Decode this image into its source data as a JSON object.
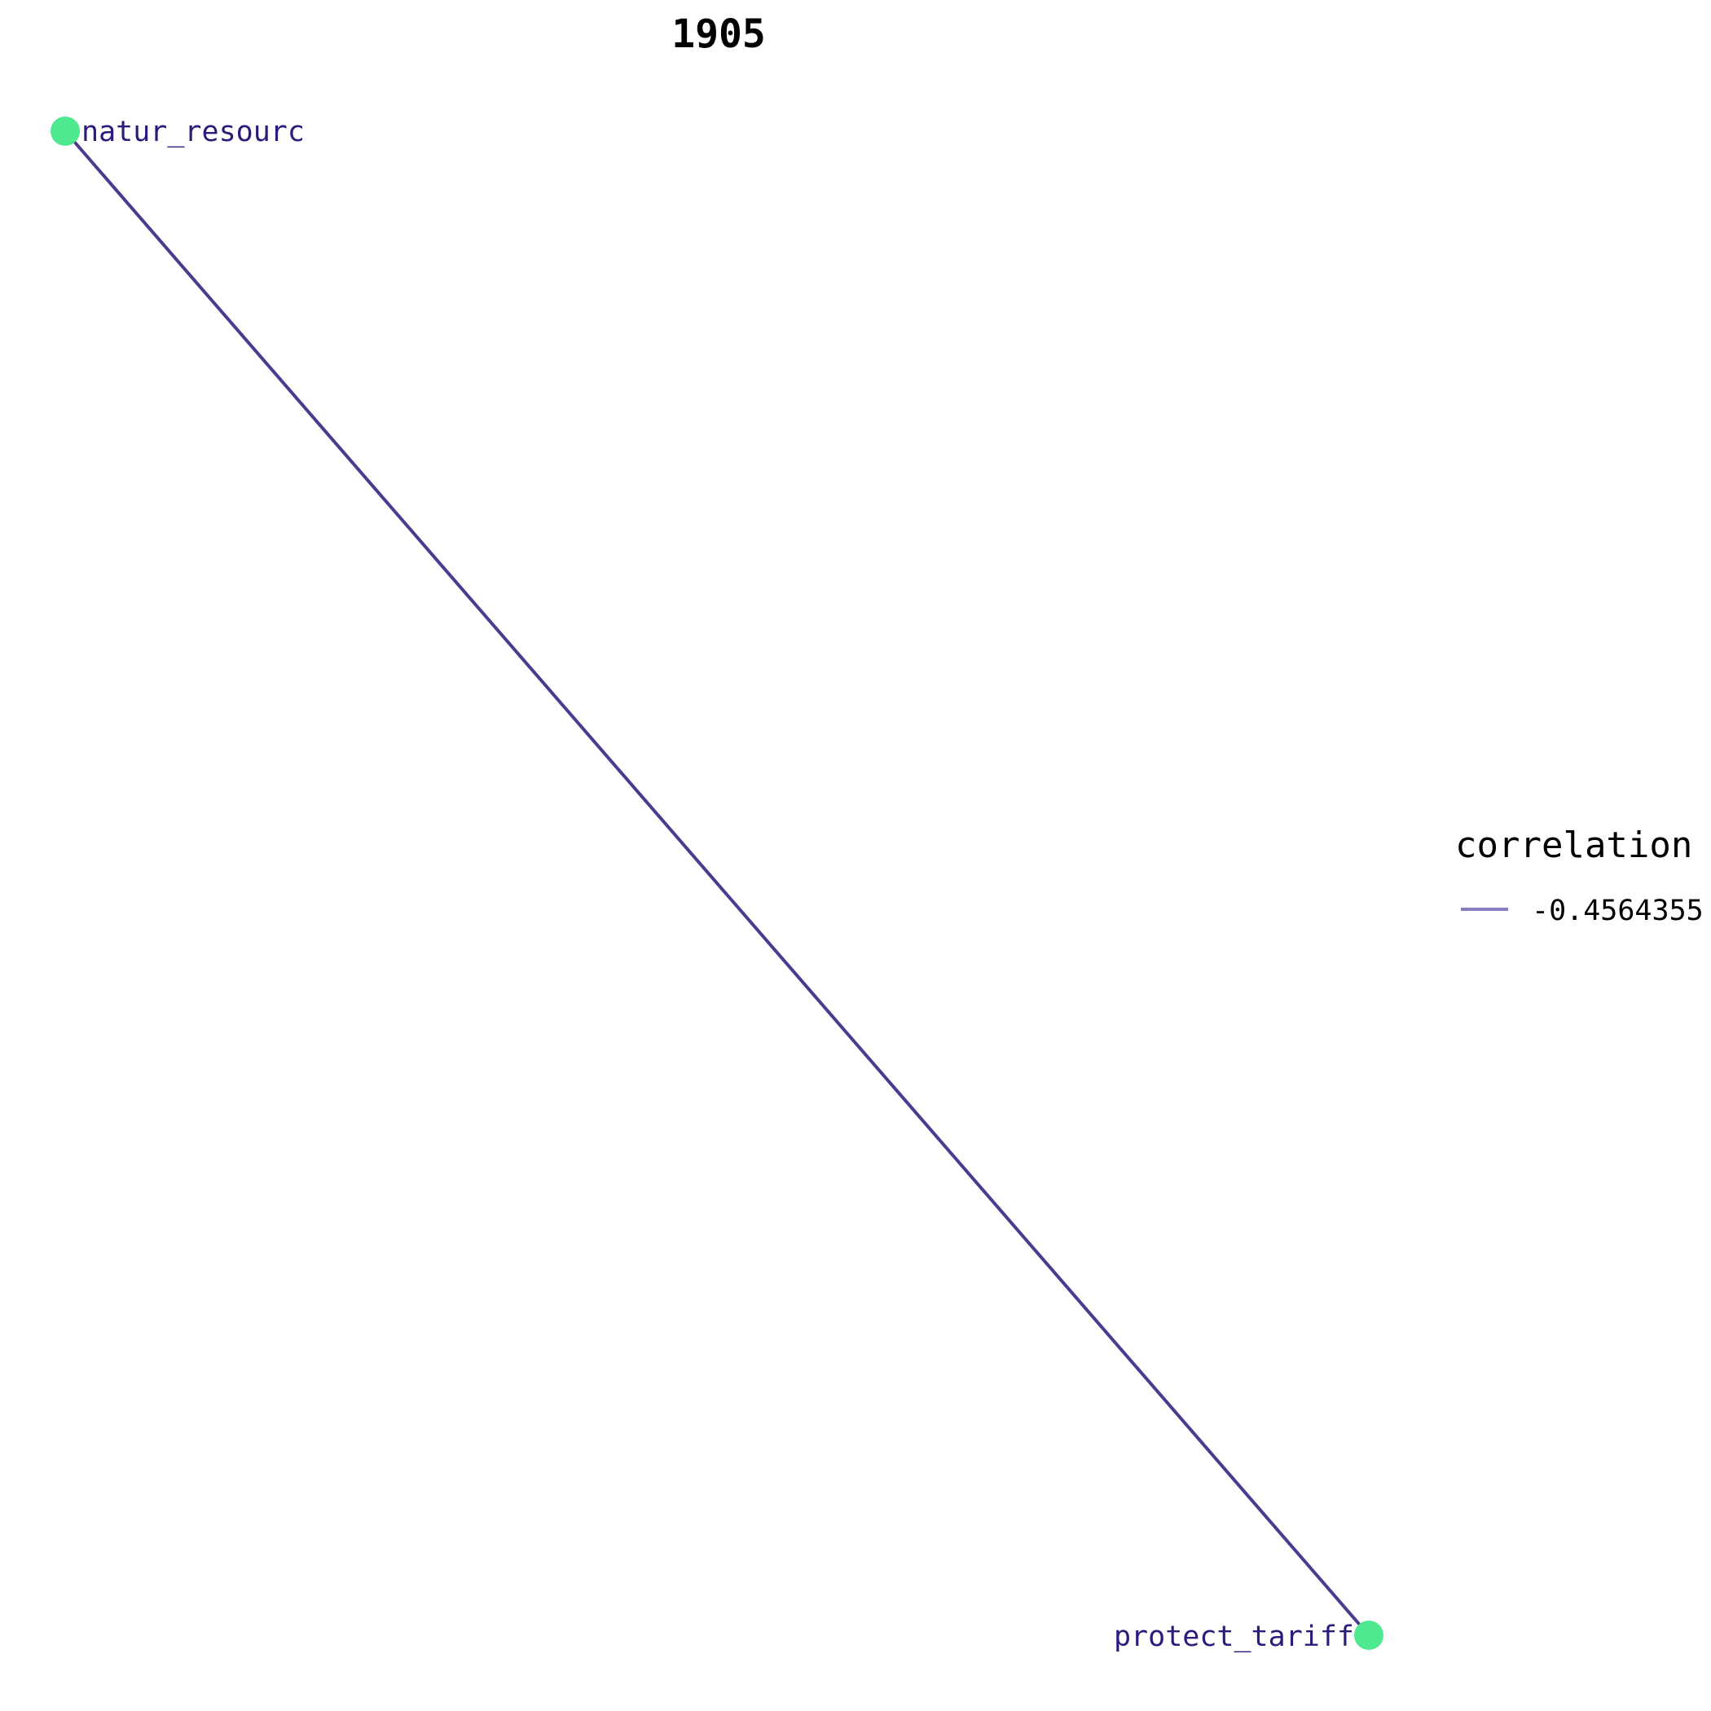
{
  "title": "1905",
  "colors": {
    "edge": "#4b3a8f",
    "node": "#4ee88f",
    "node_label": "#2e1a7a",
    "legend_key": "#8a7cc0"
  },
  "nodes": [
    {
      "id": "natur_resourc",
      "label": "natur_resourc"
    },
    {
      "id": "protect_tariff",
      "label": "protect_tariff"
    }
  ],
  "edges": [
    {
      "source": "natur_resourc",
      "target": "protect_tariff",
      "correlation": "-0.4564355"
    }
  ],
  "legend": {
    "title": "correlation",
    "items": [
      {
        "label": "-0.4564355"
      }
    ]
  }
}
